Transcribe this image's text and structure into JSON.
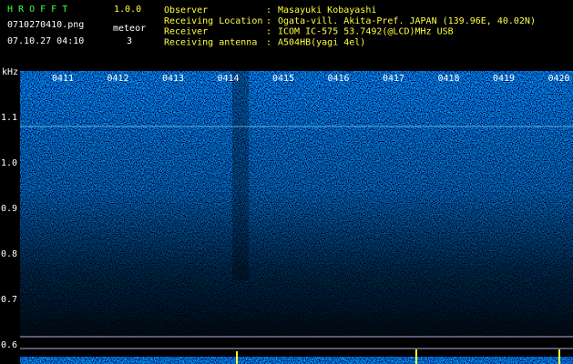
{
  "header": {
    "app": "H R O F F T",
    "version": "1.0.0",
    "file": "0710270410.png",
    "datetime": "07.10.27 04:10",
    "meteor_label": "meteor",
    "meteor_count": "3"
  },
  "info": [
    {
      "label": "Observer",
      "value": "Masayuki Kobayashi"
    },
    {
      "label": "Receiving Location",
      "value": "Ogata-vill. Akita-Pref. JAPAN (139.96E, 40.02N)"
    },
    {
      "label": "Receiver",
      "value": "ICOM IC-575 53.7492(@LCD)MHz USB"
    },
    {
      "label": "Receiving antenna",
      "value": "A504HB(yagi 4el)"
    }
  ],
  "separator": ":",
  "spectrogram": {
    "unit": "kHz",
    "time_labels": [
      "0411",
      "0412",
      "0413",
      "0414",
      "0415",
      "0416",
      "0417",
      "0418",
      "0419",
      "0420"
    ],
    "freq_labels": [
      "1.1",
      "1.0",
      "0.9",
      "0.8",
      "0.7",
      "0.6"
    ]
  }
}
